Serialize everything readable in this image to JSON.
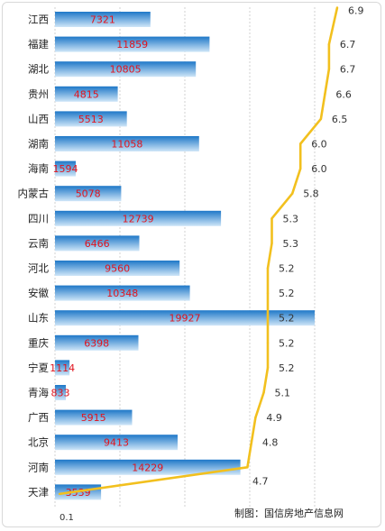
{
  "chart_data": {
    "type": "bar",
    "orientation": "horizontal",
    "categories": [
      "江西",
      "福建",
      "湖北",
      "贵州",
      "山西",
      "湖南",
      "海南",
      "内蒙古",
      "四川",
      "云南",
      "河北",
      "安徽",
      "山东",
      "重庆",
      "宁夏",
      "青海",
      "广西",
      "北京",
      "河南",
      "天津"
    ],
    "series": [
      {
        "type": "bar",
        "values": [
          7321,
          11859,
          10805,
          4815,
          5513,
          11058,
          1594,
          5078,
          12739,
          6466,
          9560,
          10348,
          19927,
          6398,
          1114,
          833,
          5915,
          9413,
          14229,
          3539
        ]
      },
      {
        "type": "line",
        "values": [
          6.9,
          6.7,
          6.7,
          6.6,
          6.5,
          6.0,
          6.0,
          5.8,
          5.3,
          5.3,
          5.2,
          5.2,
          5.2,
          5.2,
          5.2,
          5.1,
          4.9,
          4.8,
          4.7,
          0.1
        ]
      }
    ],
    "x_tick_labels": [
      "0.1"
    ],
    "grid": true,
    "colors": {
      "bar_top": "#1f78c8",
      "bar_bottom": "#cfe6f8",
      "line": "#f2c01e",
      "bar_value_text": "#e0141e"
    }
  },
  "source_note": "制图：国信房地产信息网"
}
